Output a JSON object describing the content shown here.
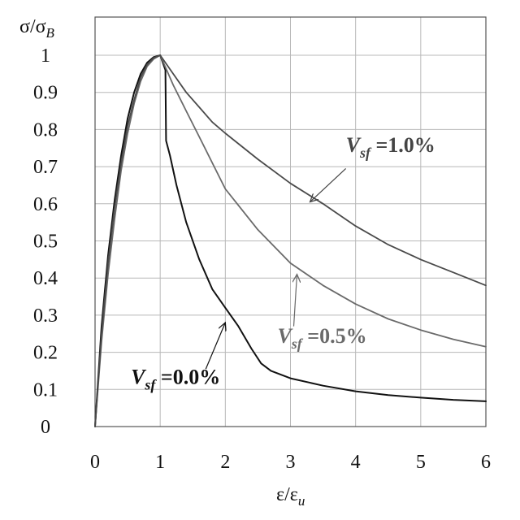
{
  "chart_data": {
    "type": "line",
    "ylabel": "σ/σ",
    "ylabel_sub": "B",
    "xlabel": "ε/ε",
    "xlabel_sub": "u",
    "xlim": [
      0,
      6
    ],
    "ylim": [
      0,
      1.0
    ],
    "xticks": [
      0,
      1,
      2,
      3,
      4,
      5,
      6
    ],
    "xtick_labels": [
      "0",
      "1",
      "2",
      "3",
      "4",
      "5",
      "6"
    ],
    "yticks": [
      0,
      0.1,
      0.2,
      0.3,
      0.4,
      0.5,
      0.6,
      0.7,
      0.8,
      0.9,
      1.0
    ],
    "ytick_labels": [
      "0",
      "0.1",
      "0.2",
      "0.3",
      "0.4",
      "0.5",
      "0.6",
      "0.7",
      "0.8",
      "0.9",
      "1"
    ],
    "grid": true,
    "series": [
      {
        "color": "#111111",
        "x": [
          0,
          0.1,
          0.2,
          0.3,
          0.4,
          0.5,
          0.6,
          0.7,
          0.8,
          0.9,
          1.0,
          1.08,
          1.09,
          1.15,
          1.25,
          1.4,
          1.6,
          1.8,
          2.0,
          2.2,
          2.4,
          2.55,
          2.7,
          3.0,
          3.5,
          4.0,
          4.5,
          5.0,
          5.5,
          6.0
        ],
        "y": [
          0,
          0.27,
          0.46,
          0.61,
          0.73,
          0.83,
          0.9,
          0.95,
          0.98,
          0.995,
          1.0,
          0.96,
          0.77,
          0.73,
          0.65,
          0.55,
          0.45,
          0.37,
          0.32,
          0.27,
          0.21,
          0.17,
          0.15,
          0.13,
          0.11,
          0.095,
          0.085,
          0.078,
          0.072,
          0.068
        ]
      },
      {
        "color": "#6a6a6a",
        "x": [
          0,
          0.1,
          0.2,
          0.3,
          0.4,
          0.5,
          0.6,
          0.7,
          0.8,
          0.9,
          1.0,
          1.1,
          1.2,
          1.4,
          1.6,
          1.8,
          2.0,
          2.5,
          3.0,
          3.5,
          4.0,
          4.5,
          5.0,
          5.5,
          6.0
        ],
        "y": [
          0,
          0.23,
          0.41,
          0.56,
          0.69,
          0.79,
          0.87,
          0.93,
          0.97,
          0.99,
          1.0,
          0.96,
          0.92,
          0.85,
          0.78,
          0.71,
          0.64,
          0.53,
          0.44,
          0.38,
          0.33,
          0.29,
          0.26,
          0.235,
          0.215
        ]
      },
      {
        "color": "#4a4a4a",
        "x": [
          0,
          0.1,
          0.2,
          0.3,
          0.4,
          0.5,
          0.6,
          0.7,
          0.8,
          0.9,
          1.0,
          1.2,
          1.4,
          1.6,
          1.8,
          2.0,
          2.5,
          3.0,
          3.5,
          4.0,
          4.5,
          5.0,
          5.5,
          6.0
        ],
        "y": [
          0,
          0.25,
          0.44,
          0.59,
          0.71,
          0.81,
          0.88,
          0.94,
          0.975,
          0.993,
          1.0,
          0.95,
          0.9,
          0.86,
          0.82,
          0.79,
          0.72,
          0.655,
          0.6,
          0.54,
          0.49,
          0.45,
          0.415,
          0.38
        ]
      }
    ],
    "annotations": [
      {
        "base": "V",
        "sub": "sf",
        "value": " =1.0%",
        "color": "#444444",
        "text_pos": [
          3.85,
          0.74
        ],
        "arrow_from": [
          3.85,
          0.695
        ],
        "arrow_to": [
          3.3,
          0.605
        ]
      },
      {
        "base": "V",
        "sub": "sf",
        "value": " =0.5%",
        "color": "#6a6a6a",
        "text_pos": [
          2.8,
          0.225
        ],
        "arrow_from": [
          3.05,
          0.27
        ],
        "arrow_to": [
          3.1,
          0.41
        ]
      },
      {
        "base": "V",
        "sub": "sf",
        "value": " =0.0%",
        "color": "#111111",
        "text_pos": [
          0.55,
          0.115
        ],
        "arrow_from": [
          1.7,
          0.155
        ],
        "arrow_to": [
          2.0,
          0.28
        ]
      }
    ]
  }
}
